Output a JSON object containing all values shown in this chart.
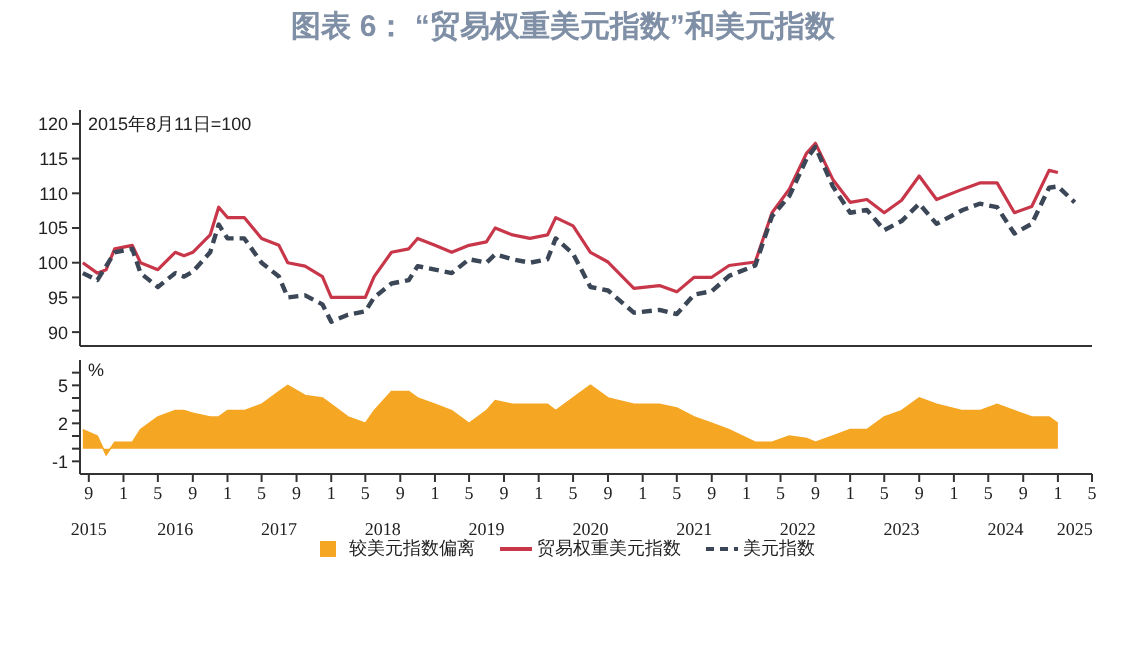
{
  "chart_data": [
    {
      "type": "line",
      "title": "图表 6：  “贸易权重美元指数”和美元指数",
      "annotations": [
        "2015年8月11日=100"
      ],
      "x": [
        "2015-08-11",
        "2015-10",
        "2015-11",
        "2015-12",
        "2016-02",
        "2016-03",
        "2016-05",
        "2016-07",
        "2016-08",
        "2016-09",
        "2016-11",
        "2016-12",
        "2017-01",
        "2017-03",
        "2017-05",
        "2017-07",
        "2017-08",
        "2017-10",
        "2017-12",
        "2018-01",
        "2018-03",
        "2018-05",
        "2018-06",
        "2018-08",
        "2018-10",
        "2018-11",
        "2019-01",
        "2019-03",
        "2019-05",
        "2019-07",
        "2019-08",
        "2019-10",
        "2019-12",
        "2020-02",
        "2020-03",
        "2020-05",
        "2020-07",
        "2020-09",
        "2020-12",
        "2021-03",
        "2021-05",
        "2021-07",
        "2021-09",
        "2021-11",
        "2022-02",
        "2022-04",
        "2022-06",
        "2022-08",
        "2022-09",
        "2022-11",
        "2023-01",
        "2023-03",
        "2023-05",
        "2023-07",
        "2023-09",
        "2023-11",
        "2024-02",
        "2024-04",
        "2024-06",
        "2024-08",
        "2024-10",
        "2024-12",
        "2025-01",
        "2025-03"
      ],
      "series": [
        {
          "name": "贸易权重美元指数",
          "color": "#c8364a",
          "line_style": "solid",
          "values": [
            100,
            98.5,
            99,
            102,
            102.5,
            100,
            99,
            101.5,
            101,
            101.5,
            104,
            108,
            106.5,
            106.5,
            103.5,
            102.5,
            100,
            99.5,
            98,
            95,
            95,
            95,
            98,
            101.5,
            102,
            103.5,
            102.5,
            101.5,
            102.5,
            103,
            105,
            104,
            103.5,
            104,
            106.5,
            105.3,
            101.5,
            100.1,
            96.3,
            96.7,
            95.8,
            97.9,
            97.9,
            99.6,
            100.1,
            107.2,
            110.6,
            115.8,
            117.2,
            112,
            108.7,
            109.1,
            107.2,
            109,
            112.5,
            109.1,
            110.6,
            111.5,
            111.5,
            107.2,
            108.1,
            113.3,
            113,
            null
          ]
        },
        {
          "name": "美元指数",
          "color": "#3b4656",
          "line_style": "dashed",
          "values": [
            98.5,
            97.5,
            99.5,
            101.5,
            102,
            98.5,
            96.5,
            98.5,
            98,
            98.7,
            101.5,
            105.5,
            103.5,
            103.5,
            100,
            98,
            95,
            95.3,
            94,
            91.5,
            92.5,
            93,
            95,
            97,
            97.5,
            99.5,
            99,
            98.5,
            100.5,
            100,
            101.2,
            100.5,
            100,
            100.5,
            103.5,
            101.3,
            96.5,
            96,
            92.8,
            93.2,
            92.6,
            95.4,
            95.9,
            98.1,
            99.6,
            106.7,
            109.6,
            115,
            116.7,
            111,
            107.2,
            107.6,
            104.7,
            106,
            108.5,
            105.6,
            107.6,
            108.5,
            108,
            104.2,
            105.6,
            110.8,
            111,
            108.7
          ]
        }
      ],
      "xlim": [
        "2015-08",
        "2025-05"
      ],
      "ylim": [
        88,
        122
      ],
      "yticks": [
        90,
        95,
        100,
        105,
        110,
        115,
        120
      ],
      "tick_labels": "y",
      "grid": false,
      "legend": "bottom"
    },
    {
      "type": "area",
      "ylabel": "%",
      "x": [
        "2015-08-11",
        "2015-10",
        "2015-11",
        "2015-12",
        "2016-02",
        "2016-03",
        "2016-05",
        "2016-07",
        "2016-08",
        "2016-09",
        "2016-11",
        "2016-12",
        "2017-01",
        "2017-03",
        "2017-05",
        "2017-07",
        "2017-08",
        "2017-10",
        "2017-12",
        "2018-01",
        "2018-03",
        "2018-05",
        "2018-06",
        "2018-08",
        "2018-10",
        "2018-11",
        "2019-01",
        "2019-03",
        "2019-05",
        "2019-07",
        "2019-08",
        "2019-10",
        "2019-12",
        "2020-02",
        "2020-03",
        "2020-05",
        "2020-07",
        "2020-09",
        "2020-12",
        "2021-03",
        "2021-05",
        "2021-07",
        "2021-09",
        "2021-11",
        "2022-02",
        "2022-04",
        "2022-06",
        "2022-08",
        "2022-09",
        "2022-11",
        "2023-01",
        "2023-03",
        "2023-05",
        "2023-07",
        "2023-09",
        "2023-11",
        "2024-02",
        "2024-04",
        "2024-06",
        "2024-08",
        "2024-10",
        "2024-12",
        "2025-01"
      ],
      "series": [
        {
          "name": "较美元指数偏离",
          "color": "#f5a623",
          "values": [
            1.5,
            1,
            -0.5,
            0.5,
            0.5,
            1.5,
            2.5,
            3,
            3,
            2.8,
            2.5,
            2.5,
            3,
            3,
            3.5,
            4.5,
            5,
            4.2,
            4,
            3.5,
            2.5,
            2,
            3,
            4.5,
            4.5,
            4,
            3.5,
            3,
            2,
            3,
            3.8,
            3.5,
            3.5,
            3.5,
            3,
            4,
            5,
            4,
            3.5,
            3.5,
            3.2,
            2.5,
            2,
            1.5,
            0.5,
            0.5,
            1,
            0.8,
            0.5,
            1,
            1.5,
            1.5,
            2.5,
            3,
            4,
            3.5,
            3,
            3,
            3.5,
            3,
            2.5,
            2.5,
            2
          ]
        }
      ],
      "xlim": [
        "2015-08",
        "2025-05"
      ],
      "xticks": [
        {
          "value": "2015-09",
          "label": "9"
        },
        {
          "value": "2016-01",
          "label": "1"
        },
        {
          "value": "2016-05",
          "label": "5"
        },
        {
          "value": "2016-09",
          "label": "9"
        },
        {
          "value": "2017-01",
          "label": "1"
        },
        {
          "value": "2017-05",
          "label": "5"
        },
        {
          "value": "2017-09",
          "label": "9"
        },
        {
          "value": "2018-01",
          "label": "1"
        },
        {
          "value": "2018-05",
          "label": "5"
        },
        {
          "value": "2018-09",
          "label": "9"
        },
        {
          "value": "2019-01",
          "label": "1"
        },
        {
          "value": "2019-05",
          "label": "5"
        },
        {
          "value": "2019-09",
          "label": "9"
        },
        {
          "value": "2020-01",
          "label": "1"
        },
        {
          "value": "2020-05",
          "label": "5"
        },
        {
          "value": "2020-09",
          "label": "9"
        },
        {
          "value": "2021-01",
          "label": "1"
        },
        {
          "value": "2021-05",
          "label": "5"
        },
        {
          "value": "2021-09",
          "label": "9"
        },
        {
          "value": "2022-01",
          "label": "1"
        },
        {
          "value": "2022-05",
          "label": "5"
        },
        {
          "value": "2022-09",
          "label": "9"
        },
        {
          "value": "2023-01",
          "label": "1"
        },
        {
          "value": "2023-05",
          "label": "5"
        },
        {
          "value": "2023-09",
          "label": "9"
        },
        {
          "value": "2024-01",
          "label": "1"
        },
        {
          "value": "2024-05",
          "label": "5"
        },
        {
          "value": "2024-09",
          "label": "9"
        },
        {
          "value": "2025-01",
          "label": "1"
        },
        {
          "value": "2025-05",
          "label": "5"
        }
      ],
      "x2lim": [
        "2015-08",
        "2025-05"
      ],
      "x2ticks": [
        {
          "value": "2015-09",
          "label": "2015"
        },
        {
          "value": "2016-07",
          "label": "2016"
        },
        {
          "value": "2017-07",
          "label": "2017"
        },
        {
          "value": "2018-07",
          "label": "2018"
        },
        {
          "value": "2019-07",
          "label": "2019"
        },
        {
          "value": "2020-07",
          "label": "2020"
        },
        {
          "value": "2021-07",
          "label": "2021"
        },
        {
          "value": "2022-07",
          "label": "2022"
        },
        {
          "value": "2023-07",
          "label": "2023"
        },
        {
          "value": "2024-07",
          "label": "2024"
        },
        {
          "value": "2025-03",
          "label": "2025"
        }
      ],
      "ylim": [
        -2,
        7
      ],
      "yticks": [
        -1,
        {
          "value": 0,
          "label": null
        },
        {
          "value": 1,
          "label": null
        },
        2,
        {
          "value": 3,
          "label": null
        },
        {
          "value": 4,
          "label": null
        },
        5,
        {
          "value": 6,
          "label": null
        }
      ],
      "grid": false,
      "legend": "bottom"
    }
  ]
}
